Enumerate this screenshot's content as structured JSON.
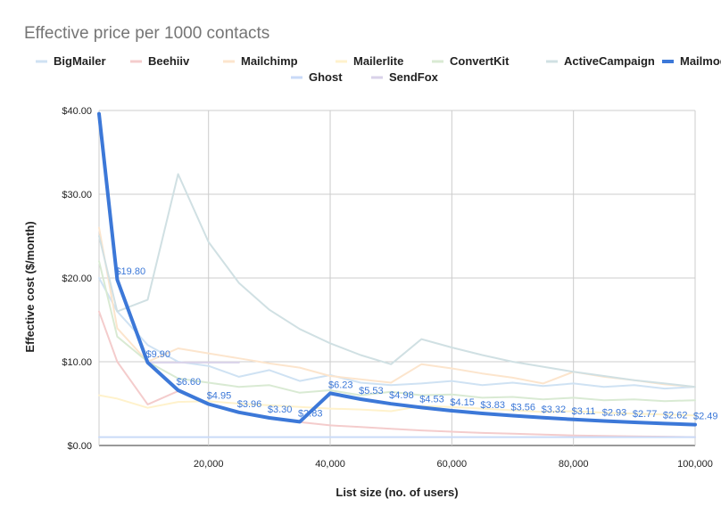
{
  "chart_data": {
    "type": "line",
    "title": "Effective price per 1000 contacts",
    "xlabel": "List size (no. of users)",
    "ylabel": "Effective cost ($/month)",
    "xlim": [
      2000,
      100000
    ],
    "ylim": [
      0,
      40
    ],
    "x_ticks": [
      20000,
      40000,
      60000,
      80000,
      100000
    ],
    "x_tick_labels": [
      "20,000",
      "40,000",
      "60,000",
      "80,000",
      "100,000"
    ],
    "y_ticks": [
      0,
      10,
      20,
      30,
      40
    ],
    "y_tick_labels": [
      "$0.00",
      "$10.00",
      "$20.00",
      "$30.00",
      "$40.00"
    ],
    "grid": true,
    "legend_position": "top",
    "series": [
      {
        "name": "BigMailer",
        "color": "#cfe2f3",
        "x": [
          2000,
          5000,
          10000,
          15000,
          20000,
          25000,
          30000,
          35000,
          40000,
          45000,
          50000,
          55000,
          60000,
          65000,
          70000,
          75000,
          80000,
          85000,
          90000,
          95000,
          100000
        ],
        "y": [
          20,
          16,
          12,
          10,
          9.5,
          8.2,
          9,
          7.7,
          8.4,
          7.5,
          7.2,
          7.4,
          7.7,
          7.2,
          7.5,
          7.1,
          7.4,
          7,
          7.2,
          6.8,
          7
        ]
      },
      {
        "name": "Beehiiv",
        "color": "#f4cccc",
        "x": [
          2000,
          5000,
          10000,
          15000,
          20000,
          25000,
          30000,
          35000,
          40000,
          45000,
          50000,
          55000,
          60000,
          65000,
          70000,
          75000,
          80000,
          85000,
          90000,
          95000,
          100000
        ],
        "y": [
          16,
          10,
          4.9,
          6.5,
          4.9,
          3.9,
          3.3,
          2.8,
          2.4,
          2.2,
          2,
          1.8,
          1.65,
          1.5,
          1.4,
          1.3,
          1.2,
          1.15,
          1.1,
          1.05,
          1
        ]
      },
      {
        "name": "Mailchimp",
        "color": "#fce5cd",
        "x": [
          2000,
          5000,
          10000,
          15000,
          20000,
          25000,
          30000,
          35000,
          40000,
          45000,
          50000,
          55000,
          60000,
          65000,
          70000,
          75000,
          80000,
          85000,
          90000,
          95000,
          100000
        ],
        "y": [
          26,
          14,
          10,
          11.6,
          11,
          10.4,
          9.8,
          9.3,
          8.3,
          7.9,
          7.5,
          9.7,
          9.2,
          8.6,
          8.1,
          7.4,
          8.8,
          8.2,
          7.8,
          7.3,
          7
        ]
      },
      {
        "name": "Mailerlite",
        "color": "#fff2cc",
        "x": [
          2000,
          5000,
          10000,
          15000,
          20000,
          25000,
          30000,
          35000,
          40000,
          45000,
          50000,
          55000,
          60000,
          65000,
          70000,
          75000,
          80000,
          85000,
          90000,
          95000,
          100000
        ],
        "y": [
          6,
          5.6,
          4.5,
          5.2,
          5.3,
          5,
          4.8,
          4.6,
          4.4,
          4.3,
          4.1,
          4.7,
          4.6,
          4.4,
          4.2,
          4,
          4.1,
          3.9,
          3.8,
          3.7,
          3.6
        ]
      },
      {
        "name": "ConvertKit",
        "color": "#d9ead3",
        "x": [
          2000,
          5000,
          10000,
          15000,
          20000,
          25000,
          30000,
          35000,
          40000,
          45000,
          50000,
          55000,
          60000,
          65000,
          70000,
          75000,
          80000,
          85000,
          90000,
          95000,
          100000
        ],
        "y": [
          22,
          13,
          10,
          8,
          7.5,
          7,
          7.2,
          6.3,
          6.6,
          6,
          6.4,
          6,
          6.1,
          5.7,
          5.8,
          5.5,
          5.7,
          5.4,
          5.5,
          5.3,
          5.4
        ]
      },
      {
        "name": "ActiveCampaign",
        "color": "#d0e0e3",
        "x": [
          2000,
          5000,
          10000,
          15000,
          20000,
          25000,
          30000,
          35000,
          40000,
          45000,
          50000,
          55000,
          60000,
          65000,
          70000,
          75000,
          80000,
          85000,
          90000,
          95000,
          100000
        ],
        "y": [
          25,
          16,
          17.4,
          32.4,
          24.3,
          19.4,
          16.2,
          13.9,
          12.2,
          10.8,
          9.7,
          12.7,
          11.7,
          10.8,
          10,
          9.4,
          8.8,
          8.3,
          7.8,
          7.4,
          7
        ]
      },
      {
        "name": "Mailmodo",
        "color": "#3c78d8",
        "x": [
          2000,
          5000,
          10000,
          15000,
          20000,
          25000,
          30000,
          35000,
          40000,
          45000,
          50000,
          55000,
          60000,
          65000,
          70000,
          75000,
          80000,
          85000,
          90000,
          95000,
          100000
        ],
        "y": [
          39.6,
          19.8,
          9.9,
          6.6,
          4.95,
          3.96,
          3.3,
          2.83,
          6.23,
          5.53,
          4.98,
          4.53,
          4.15,
          3.83,
          3.56,
          3.32,
          3.11,
          2.93,
          2.77,
          2.62,
          2.49
        ],
        "labels": [
          "",
          "$19.80",
          "$9.90",
          "$6.60",
          "$4.95",
          "$3.96",
          "$3.30",
          "$2.83",
          "$6.23",
          "$5.53",
          "$4.98",
          "$4.53",
          "$4.15",
          "$3.83",
          "$3.56",
          "$3.32",
          "$3.11",
          "$2.93",
          "$2.77",
          "$2.62",
          "$2.49"
        ]
      },
      {
        "name": "Ghost",
        "color": "#c9daf8",
        "x": [
          2000,
          100000
        ],
        "y": [
          1,
          1
        ]
      },
      {
        "name": "SendFox",
        "color": "#d9d2e9",
        "x": [
          10000,
          25000
        ],
        "y": [
          9.9,
          9.9
        ]
      }
    ]
  }
}
